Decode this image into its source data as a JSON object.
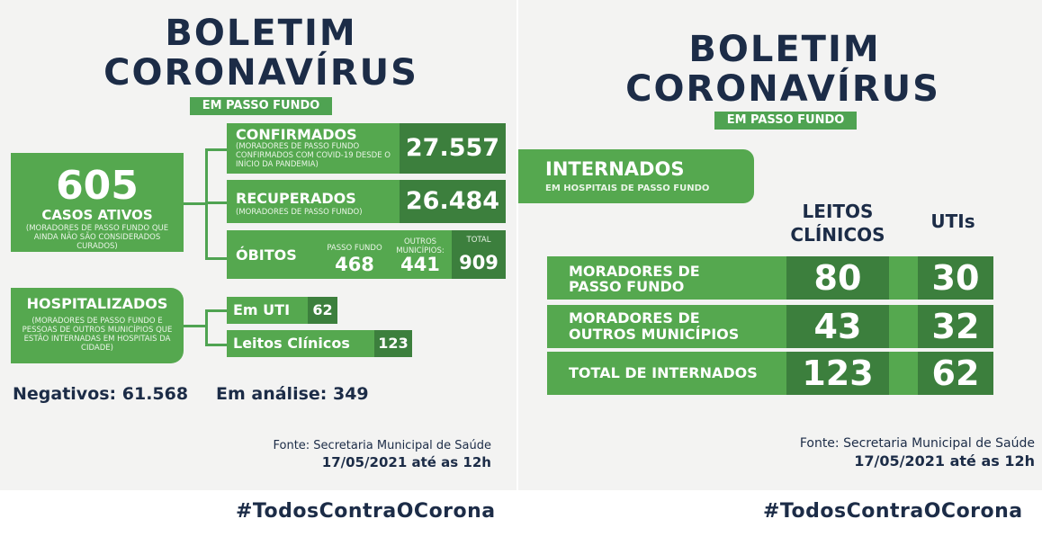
{
  "left": {
    "title1": "BOLETIM",
    "title2": "CORONAVÍRUS",
    "subtitle": "EM PASSO FUNDO",
    "active": {
      "value": "605",
      "label": "CASOS ATIVOS",
      "desc": "(MORADORES DE PASSO FUNDO QUE AINDA NÃO SÃO CONSIDERADOS CURADOS)"
    },
    "confirmed": {
      "label": "CONFIRMADOS",
      "desc": "(MORADORES DE PASSO FUNDO CONFIRMADOS COM COVID-19 DESDE O INÍCIO DA PANDEMIA)",
      "value": "27.557"
    },
    "recovered": {
      "label": "RECUPERADOS",
      "desc": "(MORADORES DE PASSO FUNDO)",
      "value": "26.484"
    },
    "deaths": {
      "label": "ÓBITOS",
      "pf_label": "PASSO FUNDO",
      "pf_value": "468",
      "other_label": "OUTROS MUNICÍPIOS:",
      "other_value": "441",
      "total_label": "TOTAL",
      "total_value": "909"
    },
    "hospitalized": {
      "label": "HOSPITALIZADOS",
      "desc": "(MORADORES DE PASSO FUNDO E PESSOAS DE OUTROS MUNICÍPIOS QUE ESTÃO INTERNADAS EM HOSPITAIS DA CIDADE)"
    },
    "uti": {
      "label": "Em UTI",
      "value": "62"
    },
    "beds": {
      "label": "Leitos Clínicos",
      "value": "123"
    },
    "negatives": "Negativos: 61.568",
    "analysis": "Em análise: 349",
    "source": "Fonte: Secretaria Municipal de Saúde",
    "date": "17/05/2021 até as 12h",
    "hashtag": "#TodosContraOCorona"
  },
  "right": {
    "title1": "BOLETIM",
    "title2": "CORONAVÍRUS",
    "subtitle": "EM PASSO FUNDO",
    "interned": "INTERNADOS",
    "interned_desc": "EM HOSPITAIS DE PASSO FUNDO",
    "col1": "LEITOS CLÍNICOS",
    "col2": "UTIs",
    "rows": [
      {
        "label1": "MORADORES DE",
        "label2": "PASSO FUNDO",
        "v1": "80",
        "v2": "30"
      },
      {
        "label1": "MORADORES DE",
        "label2": "OUTROS MUNICÍPIOS",
        "v1": "43",
        "v2": "32"
      },
      {
        "label1": "TOTAL DE INTERNADOS",
        "label2": "",
        "v1": "123",
        "v2": "62"
      }
    ],
    "source": "Fonte: Secretaria Municipal de Saúde",
    "date": "17/05/2021 até as 12h",
    "hashtag": "#TodosContraOCorona"
  }
}
